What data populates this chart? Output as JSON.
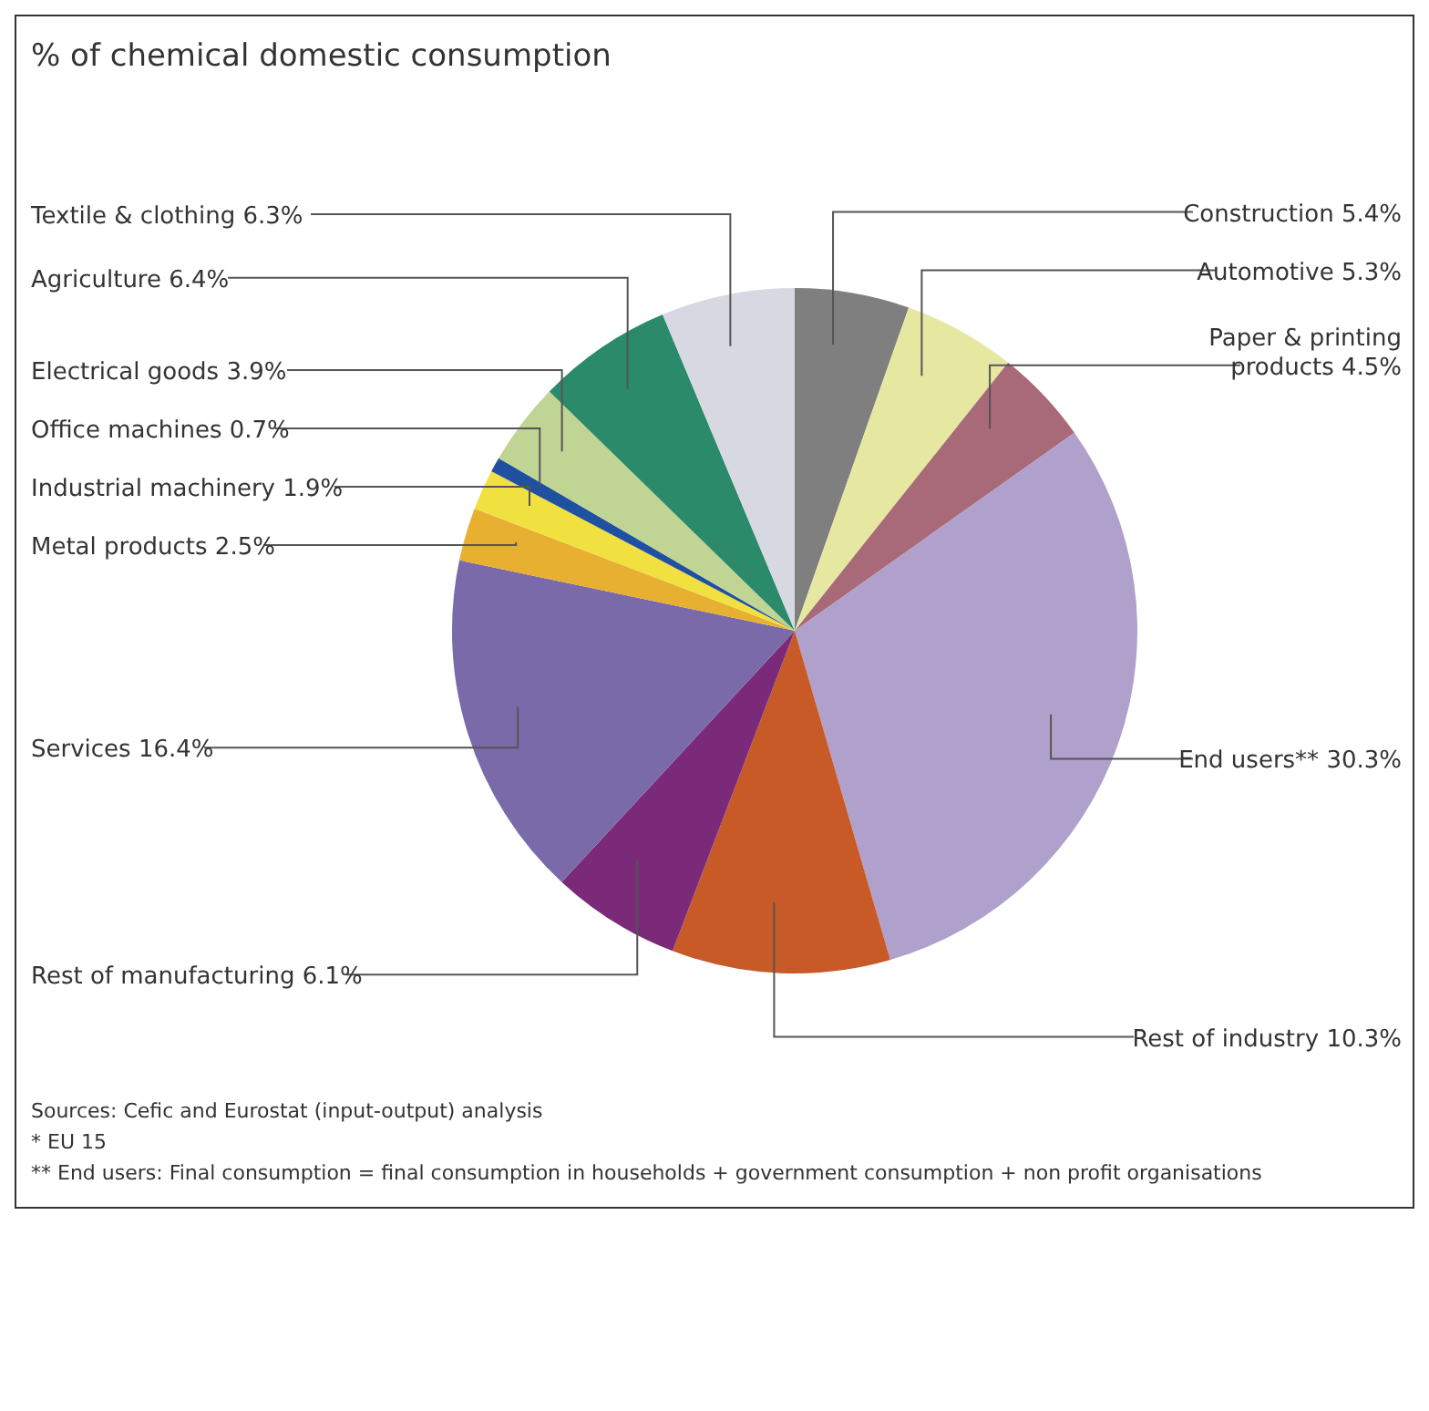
{
  "chart_data": {
    "type": "pie",
    "title": "% of chemical domestic consumption",
    "categories": [
      "Construction",
      "Automotive",
      "Paper & printing products",
      "End users**",
      "Rest of industry",
      "Rest of manufacturing",
      "Services",
      "Metal products",
      "Industrial machinery",
      "Office machines",
      "Electrical goods",
      "Agriculture",
      "Textile & clothing"
    ],
    "values": [
      5.4,
      5.3,
      4.5,
      30.3,
      10.3,
      6.1,
      16.4,
      2.5,
      1.9,
      0.7,
      3.9,
      6.4,
      6.3
    ],
    "colors": [
      "#7f7f7f",
      "#e6e8a2",
      "#a86a78",
      "#b0a0cc",
      "#c85a28",
      "#7a2a78",
      "#7a6aaa",
      "#e8b030",
      "#f0e040",
      "#2050a0",
      "#c0d494",
      "#2a8a6a",
      "#d8d8e2"
    ],
    "value_labels": [
      "5.4%",
      "5.3%",
      "4.5%",
      "30.3%",
      "10.3%",
      "6.1%",
      "16.4%",
      "2.5%",
      "1.9%",
      "0.7%",
      "3.9%",
      "6.4%",
      "6.3%"
    ],
    "annotations": [
      "Sources: Cefic and Eurostat (input-output) analysis",
      "* EU 15",
      "** End users: Final consumption = final consumption in households + government consumption + non profit organisations"
    ]
  }
}
